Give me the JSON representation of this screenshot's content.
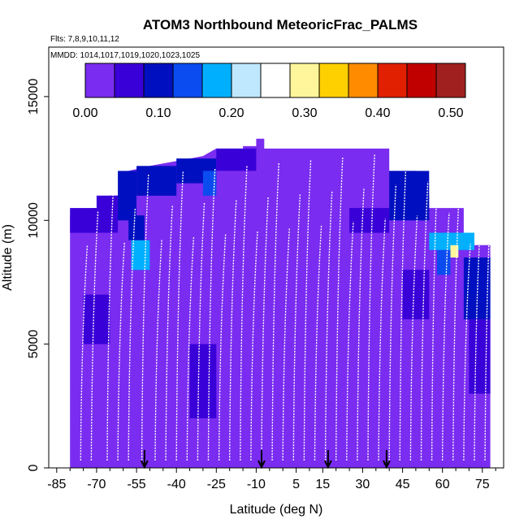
{
  "chart_data": {
    "type": "heatmap",
    "title": "ATOM3 Northbound MeteoricFrac_PALMS",
    "subtitle_flights": "Flts: 7,8,9,10,11,12",
    "subtitle_dates": "MMDD: 1014,1017,1019,1020,1023,1025",
    "xlabel": "Latitude (deg N)",
    "ylabel": "Altitude (m)",
    "xlim": [
      -88,
      83
    ],
    "ylim": [
      0,
      17000
    ],
    "x_ticks": [
      -85,
      -70,
      -55,
      -40,
      -25,
      -10,
      5,
      15,
      30,
      45,
      60,
      75
    ],
    "x_tick_labels": [
      "-85",
      "-70",
      "-55",
      "-40",
      "-25",
      "-10",
      "5",
      "15",
      "30",
      "45",
      "60",
      "75"
    ],
    "y_ticks": [
      0,
      5000,
      10000,
      15000
    ],
    "y_tick_labels": [
      "0",
      "5000",
      "10000",
      "15000"
    ],
    "colorbar": {
      "min": 0.0,
      "max": 0.52,
      "ticks": [
        0.0,
        0.1,
        0.2,
        0.3,
        0.4,
        0.5
      ],
      "tick_labels": [
        "0.00",
        "0.10",
        "0.20",
        "0.30",
        "0.40",
        "0.50"
      ],
      "colors": [
        "#7a2cf0",
        "#3a00d8",
        "#0010c0",
        "#0a4cf0",
        "#00b0ff",
        "#bfe8ff",
        "#ffffff",
        "#fff59a",
        "#ffd000",
        "#ff8c00",
        "#e02000",
        "#c00000",
        "#a02020"
      ]
    },
    "background_value": 0.0,
    "cells": [
      {
        "lat0": -80,
        "lat1": -70,
        "alt0": 9500,
        "alt1": 10500,
        "value": 0.05
      },
      {
        "lat0": -70,
        "lat1": -62,
        "alt0": 9500,
        "alt1": 11000,
        "value": 0.06
      },
      {
        "lat0": -62,
        "lat1": -55,
        "alt0": 10000,
        "alt1": 12000,
        "value": 0.08
      },
      {
        "lat0": -55,
        "lat1": -40,
        "alt0": 11000,
        "alt1": 12200,
        "value": 0.09
      },
      {
        "lat0": -40,
        "lat1": -25,
        "alt0": 11500,
        "alt1": 12500,
        "value": 0.07
      },
      {
        "lat0": -25,
        "lat1": -10,
        "alt0": 12000,
        "alt1": 12900,
        "value": 0.05
      },
      {
        "lat0": -57,
        "lat1": -50,
        "alt0": 8000,
        "alt1": 9200,
        "value": 0.17
      },
      {
        "lat0": -58,
        "lat1": -52,
        "alt0": 9200,
        "alt1": 10200,
        "value": 0.1
      },
      {
        "lat0": -30,
        "lat1": -25,
        "alt0": 11000,
        "alt1": 12000,
        "value": 0.15
      },
      {
        "lat0": 25,
        "lat1": 40,
        "alt0": 9500,
        "alt1": 10500,
        "value": 0.06
      },
      {
        "lat0": 40,
        "lat1": 55,
        "alt0": 10000,
        "alt1": 12000,
        "value": 0.07
      },
      {
        "lat0": 55,
        "lat1": 72,
        "alt0": 8800,
        "alt1": 9500,
        "value": 0.17
      },
      {
        "lat0": 58,
        "lat1": 63,
        "alt0": 7800,
        "alt1": 8800,
        "value": 0.15
      },
      {
        "lat0": 63,
        "lat1": 66,
        "alt0": 8500,
        "alt1": 9000,
        "value": 0.32
      },
      {
        "lat0": 68,
        "lat1": 78,
        "alt0": 6000,
        "alt1": 8500,
        "value": 0.07
      },
      {
        "lat0": -35,
        "lat1": -25,
        "alt0": 2000,
        "alt1": 5000,
        "value": 0.05
      },
      {
        "lat0": 45,
        "lat1": 55,
        "alt0": 6000,
        "alt1": 8000,
        "value": 0.06
      },
      {
        "lat0": -75,
        "lat1": -65,
        "alt0": 5000,
        "alt1": 7000,
        "value": 0.04
      },
      {
        "lat0": 70,
        "lat1": 78,
        "alt0": 3000,
        "alt1": 6000,
        "value": 0.05
      }
    ],
    "arrows_lat": [
      -52,
      -8,
      17,
      39
    ]
  }
}
